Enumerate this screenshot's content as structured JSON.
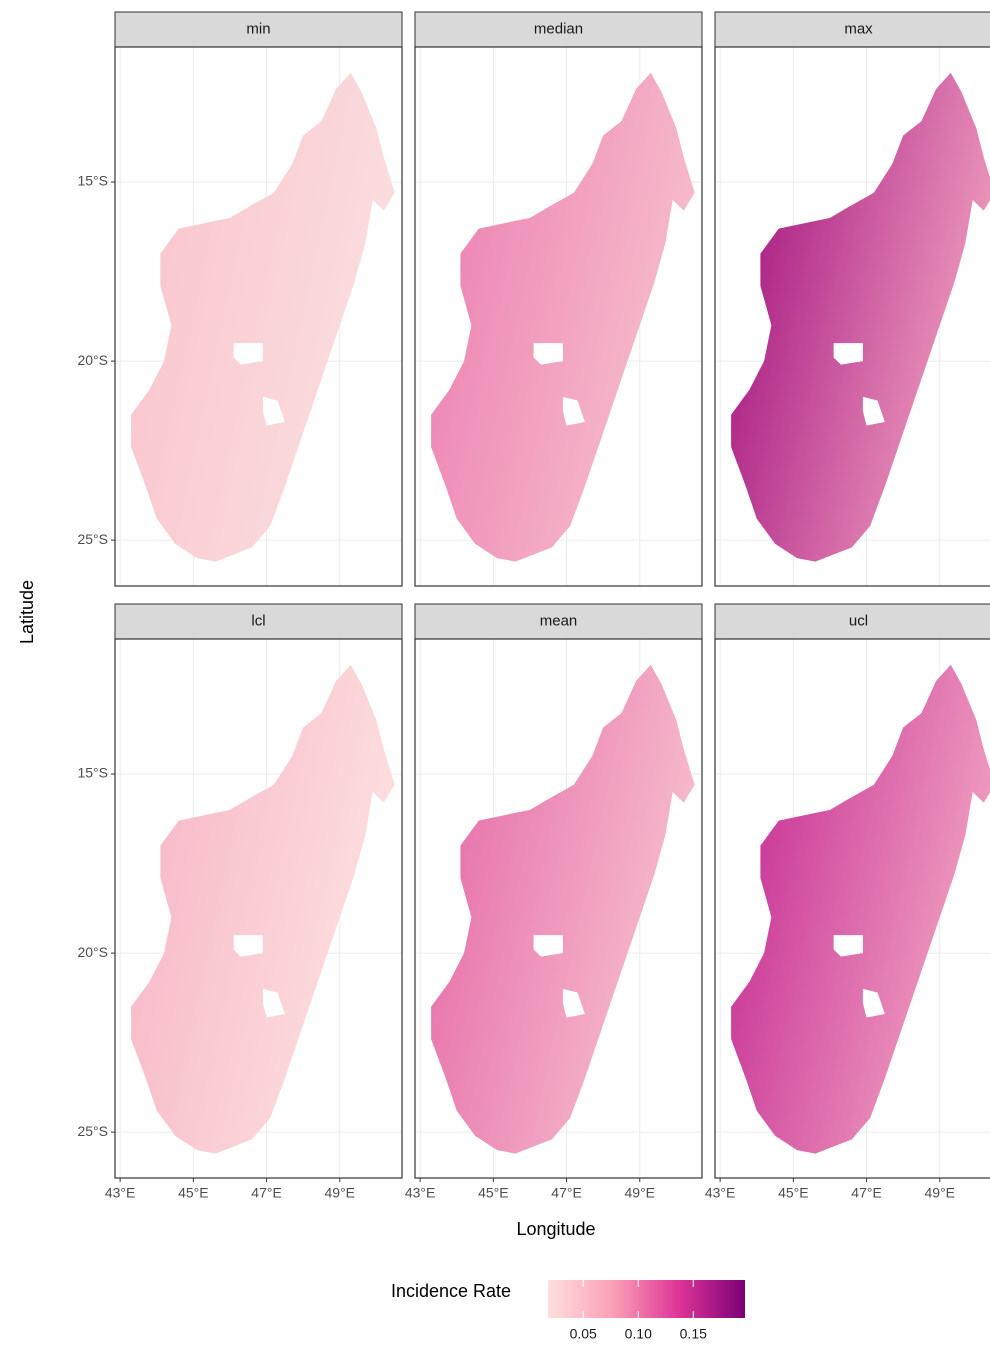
{
  "chart_data": {
    "type": "map",
    "x_label": "Longitude",
    "y_label": "Latitude",
    "xlim": [
      42.86,
      50.7
    ],
    "ylim": [
      -26.28,
      -11.23
    ],
    "xticks": [
      {
        "value": 43,
        "label": "43°E"
      },
      {
        "value": 45,
        "label": "45°E"
      },
      {
        "value": 47,
        "label": "47°E"
      },
      {
        "value": 49,
        "label": "49°E"
      }
    ],
    "yticks": [
      {
        "value": -15,
        "label": "15°S"
      },
      {
        "value": -20,
        "label": "20°S"
      },
      {
        "value": -25,
        "label": "25°S"
      }
    ],
    "grid": true,
    "panels": [
      {
        "name": "min",
        "colors": [
          "#f9c4cc",
          "#fbe0e0"
        ]
      },
      {
        "name": "median",
        "colors": [
          "#ec7fb2",
          "#f7c2cd"
        ]
      },
      {
        "name": "max",
        "colors": [
          "#a3117f",
          "#f4a6c2"
        ]
      },
      {
        "name": "lcl",
        "colors": [
          "#f7b5c6",
          "#fde3e0"
        ]
      },
      {
        "name": "mean",
        "colors": [
          "#e56aa8",
          "#f8c3cf"
        ]
      },
      {
        "name": "ucl",
        "colors": [
          "#c42a93",
          "#f4a9c4"
        ]
      }
    ],
    "legend": {
      "title": "Incidence Rate",
      "position": "bottom",
      "limits": [
        0.018,
        0.197
      ],
      "colors": [
        "#fde0dd",
        "#fa9fb5",
        "#dd3497",
        "#7a0177"
      ],
      "ticks": [
        0.05,
        {
          "value": 0.1,
          "label": "0.10"
        },
        0.15
      ]
    }
  }
}
